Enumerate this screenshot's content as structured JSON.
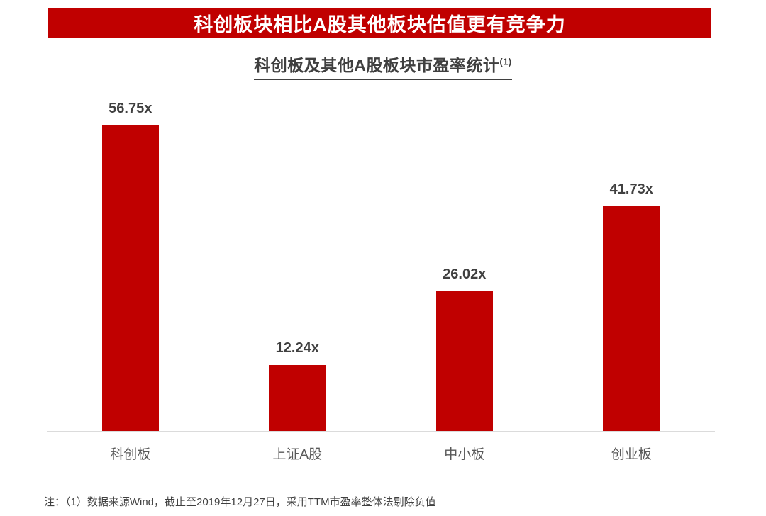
{
  "banner": {
    "title": "科创板块相比A股其他板块估值更有竞争力"
  },
  "chart_title": {
    "text": "科创板及其他A股板块市盈率统计",
    "superscript": "(1)"
  },
  "footnote": "注：（1）数据来源Wind，截止至2019年12月27日，采用TTM市盈率整体法剔除负值",
  "colors": {
    "accent_red": "#C00000",
    "banner_text": "#FFFFFF",
    "title_text": "#3F3F3F",
    "value_label": "#404040",
    "category_label": "#595959",
    "axis_line": "#DBDBDB",
    "footnote_text": "#404040",
    "background": "#FFFFFF"
  },
  "chart_data": {
    "type": "bar",
    "title": "科创板及其他A股板块市盈率统计(1)",
    "categories": [
      "科创板",
      "上证A股",
      "中小板",
      "创业板"
    ],
    "values": [
      56.75,
      12.24,
      26.02,
      41.73
    ],
    "value_labels": [
      "56.75x",
      "12.24x",
      "26.02x",
      "41.73x"
    ],
    "xlabel": "",
    "ylabel": "",
    "ylim": [
      0,
      63
    ],
    "grid": false,
    "legend": false,
    "bar_color": "#C00000",
    "value_labels_position": "above-bars",
    "axis": "x-axis-only"
  }
}
